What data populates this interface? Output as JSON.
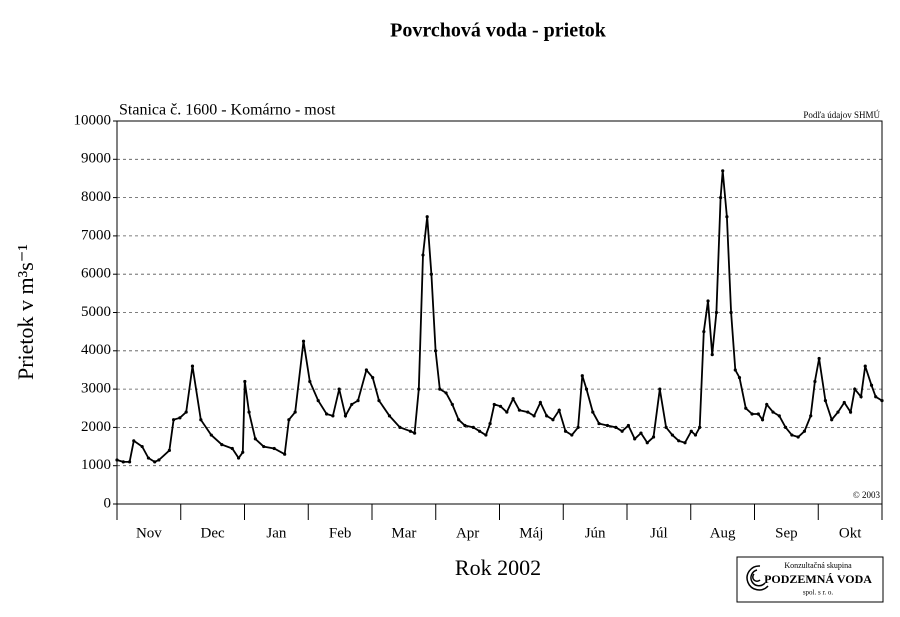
{
  "chart_data": {
    "type": "line",
    "title": "Povrchová voda - prietok",
    "subtitle": "Stanica č. 1600 - Komárno - most",
    "source": "Podľa údajov SHMÚ",
    "copyright": "© 2003",
    "y_label": "Prietok v m³s⁻¹",
    "x_label": "Rok 2002",
    "logo": {
      "line1": "Konzultačná skupina",
      "line2": "PODZEMNÁ VODA",
      "line3": "spol. s r. o."
    },
    "categories": [
      "Nov",
      "Dec",
      "Jan",
      "Feb",
      "Mar",
      "Apr",
      "Máj",
      "Jún",
      "Júl",
      "Aug",
      "Sep",
      "Okt"
    ],
    "xlim": [
      0,
      365
    ],
    "ylim": [
      0,
      10000
    ],
    "yticks": [
      0,
      1000,
      2000,
      3000,
      4000,
      5000,
      6000,
      7000,
      8000,
      9000,
      10000
    ],
    "grid": true,
    "x": [
      0,
      3,
      6,
      8,
      12,
      15,
      18,
      20,
      25,
      27,
      30,
      33,
      36,
      40,
      45,
      50,
      55,
      58,
      60,
      61,
      63,
      66,
      70,
      75,
      80,
      82,
      85,
      89,
      92,
      96,
      100,
      103,
      106,
      109,
      112,
      115,
      119,
      122,
      125,
      130,
      135,
      140,
      142,
      144,
      146,
      148,
      150,
      152,
      154,
      157,
      160,
      163,
      166,
      170,
      173,
      176,
      178,
      180,
      183,
      186,
      189,
      192,
      196,
      199,
      202,
      205,
      208,
      211,
      214,
      217,
      220,
      222,
      224,
      227,
      230,
      234,
      238,
      241,
      244,
      247,
      250,
      253,
      256,
      259,
      262,
      265,
      268,
      271,
      274,
      276,
      278,
      280,
      282,
      284,
      286,
      288,
      289,
      291,
      293,
      295,
      297,
      300,
      303,
      306,
      308,
      310,
      313,
      316,
      319,
      322,
      325,
      328,
      331,
      333,
      335,
      338,
      341,
      344,
      347,
      350,
      352,
      355,
      357,
      360,
      362,
      365
    ],
    "series": [
      {
        "name": "Prietok",
        "color": "#000000",
        "values": [
          1150,
          1100,
          1100,
          1650,
          1500,
          1200,
          1100,
          1150,
          1400,
          2200,
          2250,
          2400,
          3600,
          2200,
          1800,
          1550,
          1450,
          1200,
          1350,
          3200,
          2400,
          1700,
          1500,
          1450,
          1300,
          2200,
          2400,
          4250,
          3200,
          2700,
          2350,
          2300,
          3000,
          2300,
          2600,
          2700,
          3500,
          3300,
          2700,
          2300,
          2000,
          1900,
          1850,
          3000,
          6500,
          7500,
          6000,
          4000,
          3000,
          2900,
          2600,
          2200,
          2050,
          2000,
          1900,
          1800,
          2100,
          2600,
          2550,
          2400,
          2750,
          2450,
          2400,
          2300,
          2650,
          2300,
          2200,
          2450,
          1900,
          1800,
          2000,
          3350,
          3000,
          2400,
          2100,
          2050,
          2000,
          1900,
          2050,
          1700,
          1850,
          1600,
          1750,
          3000,
          2000,
          1800,
          1650,
          1600,
          1900,
          1800,
          2000,
          4500,
          5300,
          3900,
          5000,
          8000,
          8700,
          7500,
          5000,
          3500,
          3300,
          2500,
          2350,
          2350,
          2200,
          2600,
          2400,
          2300,
          2000,
          1800,
          1750,
          1900,
          2300,
          3200,
          3800,
          2700,
          2200,
          2400,
          2650,
          2400,
          3000,
          2800,
          3600,
          3100,
          2800,
          2700
        ]
      }
    ]
  }
}
